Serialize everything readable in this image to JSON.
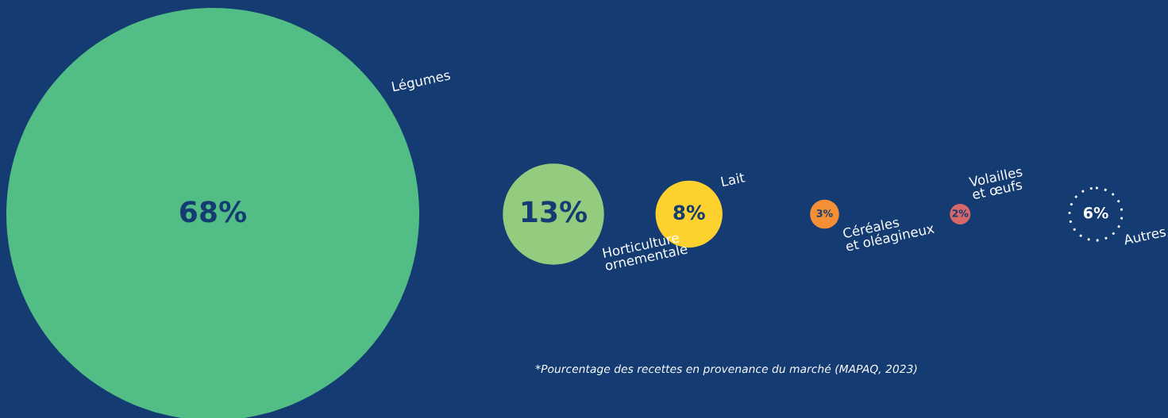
{
  "chart_data": {
    "type": "other",
    "categories": [
      "Légumes",
      "Horticulture\nornementale",
      "Lait",
      "Céréales\net oléagineux",
      "Volailles\net œufs",
      "Autres"
    ],
    "values": [
      68,
      13,
      8,
      3,
      2,
      6
    ],
    "value_labels": [
      "68%",
      "13%",
      "8%",
      "3%",
      "2%",
      "6%"
    ],
    "colors": [
      "#52bd84",
      "#93cc7e",
      "#fdd22f",
      "#f58f35",
      "#d8676a",
      null
    ],
    "annotations": [
      "*Pourcentage des recettes en provenance du marché (MAPAQ, 2023)"
    ]
  }
}
